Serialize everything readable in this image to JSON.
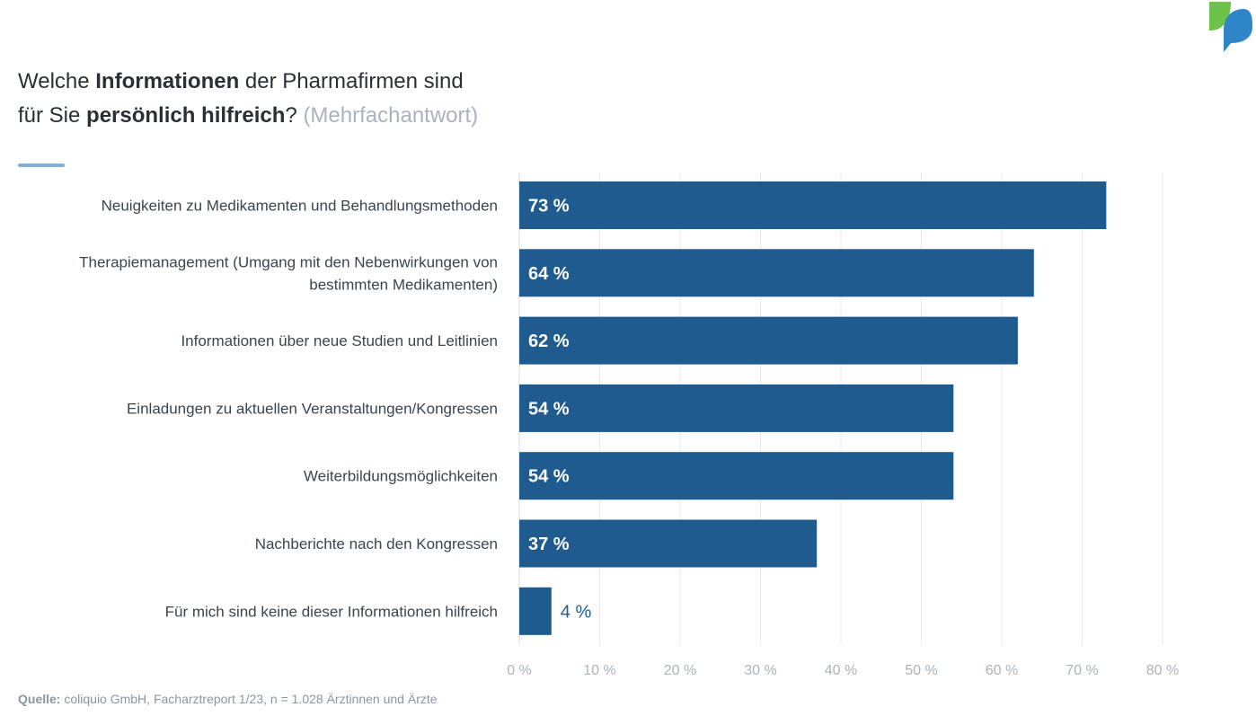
{
  "title": {
    "w1": "Welche ",
    "w2": "Informationen",
    "w3": " der Pharmafirmen sind",
    "w4": "für Sie ",
    "w5": "persönlich hilfreich",
    "w6": "? ",
    "w7": "(Mehrfachantwort)"
  },
  "source": {
    "label": "Quelle:",
    "text": " coliquio GmbH, Facharztreport 1/23, n = 1.028 Ärztinnen und Ärzte"
  },
  "colors": {
    "bar": "#1f5b8e",
    "grid": "#e6e9ec",
    "tick": "#aab3bd",
    "label": "#3a4550",
    "value_inside": "#ffffff",
    "value_outside": "#1f5b8e",
    "logo_green": "#6cc24a",
    "logo_blue": "#2e86c8"
  },
  "chart_data": {
    "type": "bar",
    "orientation": "horizontal",
    "categories": [
      [
        "Neuigkeiten zu Medikamenten und Behandlungsmethoden"
      ],
      [
        "Therapiemanagement (Umgang mit den Nebenwirkungen von",
        "bestimmten Medikamenten)"
      ],
      [
        "Informationen über neue Studien und Leitlinien"
      ],
      [
        "Einladungen zu aktuellen Veranstaltungen/Kongressen"
      ],
      [
        "Weiterbildungsmöglichkeiten"
      ],
      [
        "Nachberichte nach den Kongressen"
      ],
      [
        "Für mich sind keine dieser Informationen hilfreich"
      ]
    ],
    "values": [
      73,
      64,
      62,
      54,
      54,
      37,
      4
    ],
    "value_labels": [
      "73 %",
      "64 %",
      "62 %",
      "54 %",
      "54 %",
      "37 %",
      "4 %"
    ],
    "xlim": [
      0,
      80
    ],
    "xticks": [
      0,
      10,
      20,
      30,
      40,
      50,
      60,
      70,
      80
    ],
    "xtick_labels": [
      "0 %",
      "10 %",
      "20 %",
      "30 %",
      "40 %",
      "50 %",
      "60 %",
      "70 %",
      "80 %"
    ],
    "xlabel": "",
    "ylabel": "",
    "grid": true,
    "legend": "none"
  }
}
